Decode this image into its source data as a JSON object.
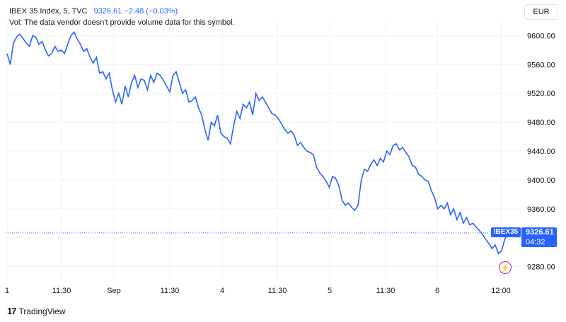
{
  "header": {
    "symbol_line": "IBEX 35 Index, 5, TVC",
    "quote": "9326.61  −2.48 (−0.03%)",
    "volume_note": "Vol: The data vendor doesn't provide volume data for this symbol."
  },
  "currency_button": "EUR",
  "brand": "TradingView",
  "price_label": {
    "symbol": "IBEX35",
    "price": "9326.61",
    "countdown": "04:32"
  },
  "colors": {
    "line": "#2962ff",
    "grid": "#f0f3fa",
    "axis_text": "#131722",
    "last_price_line": "#2962ff"
  },
  "chart_data": {
    "type": "line",
    "y_ticks": [
      9280,
      9320,
      9360,
      9400,
      9440,
      9480,
      9520,
      9560,
      9600
    ],
    "y_tick_labels": [
      "9280.00",
      "9320.00",
      "9360.00",
      "9400.00",
      "9440.00",
      "9480.00",
      "9520.00",
      "9560.00",
      "9600.00"
    ],
    "x_tick_labels": [
      "1",
      "11:30",
      "Sep",
      "11:30",
      "4",
      "11:30",
      "5",
      "11:30",
      "6",
      "12:00"
    ],
    "last_price": 9326.61,
    "series": [
      {
        "values": [
          9575,
          9560,
          9590,
          9598,
          9602,
          9596,
          9590,
          9585,
          9600,
          9598,
          9588,
          9592,
          9580,
          9572,
          9575,
          9585,
          9578,
          9580,
          9575,
          9588,
          9600,
          9605,
          9595,
          9588,
          9578,
          9582,
          9570,
          9562,
          9570,
          9548,
          9550,
          9540,
          9548,
          9525,
          9508,
          9520,
          9505,
          9530,
          9515,
          9535,
          9545,
          9528,
          9540,
          9538,
          9525,
          9545,
          9535,
          9548,
          9545,
          9538,
          9530,
          9522,
          9545,
          9550,
          9535,
          9520,
          9525,
          9508,
          9510,
          9515,
          9500,
          9490,
          9470,
          9455,
          9480,
          9475,
          9490,
          9465,
          9460,
          9458,
          9450,
          9475,
          9495,
          9485,
          9505,
          9500,
          9508,
          9490,
          9520,
          9510,
          9515,
          9508,
          9500,
          9492,
          9490,
          9485,
          9478,
          9470,
          9465,
          9468,
          9462,
          9448,
          9452,
          9445,
          9440,
          9438,
          9435,
          9418,
          9410,
          9405,
          9398,
          9390,
          9405,
          9402,
          9392,
          9372,
          9365,
          9368,
          9362,
          9358,
          9365,
          9400,
          9415,
          9412,
          9422,
          9428,
          9420,
          9430,
          9425,
          9440,
          9435,
          9448,
          9450,
          9442,
          9445,
          9438,
          9432,
          9420,
          9418,
          9408,
          9405,
          9400,
          9398,
          9385,
          9375,
          9360,
          9365,
          9360,
          9368,
          9352,
          9360,
          9345,
          9355,
          9340,
          9348,
          9338,
          9340,
          9335,
          9330,
          9325,
          9318,
          9312,
          9305,
          9310,
          9298,
          9302,
          9318,
          9326.61
        ]
      }
    ]
  }
}
